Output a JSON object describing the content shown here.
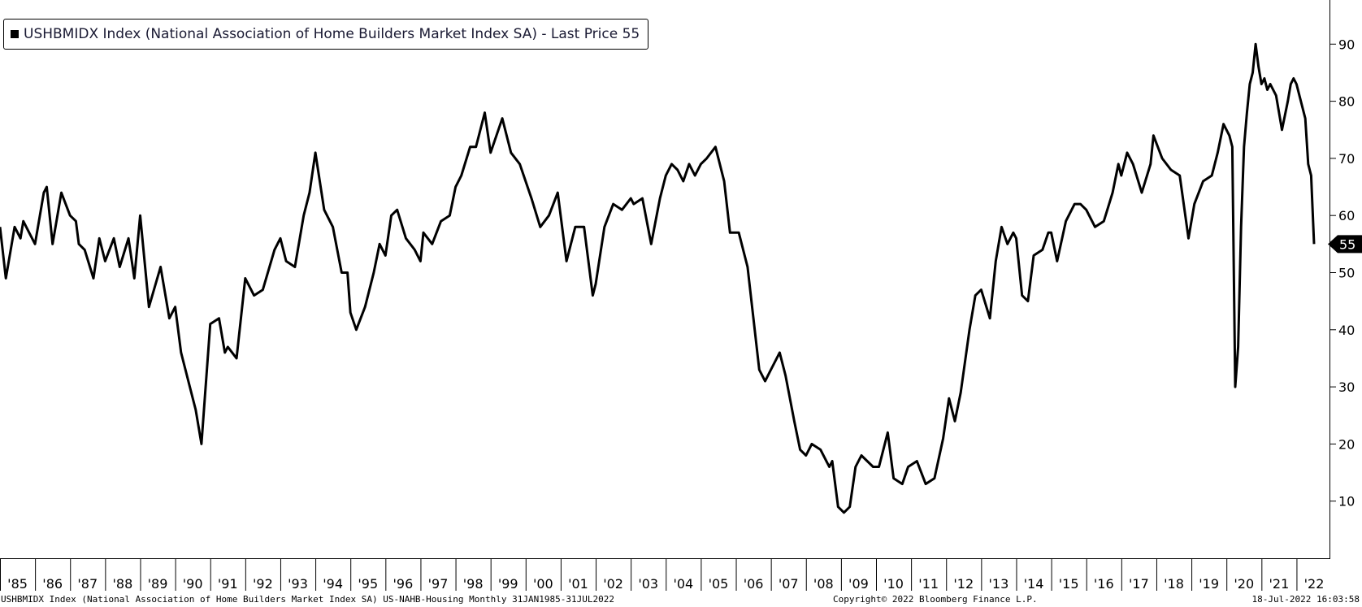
{
  "legend": {
    "text": "USHBMIDX Index (National Association of Home Builders Market Index SA) - Last Price 55",
    "series_color": "#000000"
  },
  "footer": {
    "left": "USHBMIDX Index (National Association of Home Builders Market Index SA) US-NAHB-Housing  Monthly 31JAN1985-31JUL2022",
    "copyright": "Copyright© 2022 Bloomberg Finance L.P.",
    "timestamp": "18-Jul-2022 16:03:58"
  },
  "chart_data": {
    "type": "line",
    "title": "",
    "xlabel": "",
    "ylabel": "",
    "ylim": [
      0,
      100
    ],
    "y_ticks": [
      10,
      20,
      30,
      40,
      50,
      60,
      70,
      80,
      90
    ],
    "x_tick_labels": [
      "'85",
      "'86",
      "'87",
      "'88",
      "'89",
      "'90",
      "'91",
      "'92",
      "'93",
      "'94",
      "'95",
      "'96",
      "'97",
      "'98",
      "'99",
      "'00",
      "'01",
      "'02",
      "'03",
      "'04",
      "'05",
      "'06",
      "'07",
      "'08",
      "'09",
      "'10",
      "'11",
      "'12",
      "'13",
      "'14",
      "'15",
      "'16",
      "'17",
      "'18",
      "'19",
      "'20",
      "'21",
      "'22"
    ],
    "x_range": [
      "1985-01",
      "2022-07"
    ],
    "last_value_label": "55",
    "grid": false,
    "legend_position": "top-left",
    "series": [
      {
        "name": "USHBMIDX Index (National Association of Home Builders Market Index SA)",
        "color": "#000000",
        "points": [
          [
            "1985-01",
            58
          ],
          [
            "1985-03",
            49
          ],
          [
            "1985-06",
            58
          ],
          [
            "1985-08",
            56
          ],
          [
            "1985-09",
            59
          ],
          [
            "1985-11",
            57
          ],
          [
            "1986-01",
            55
          ],
          [
            "1986-04",
            64
          ],
          [
            "1986-05",
            65
          ],
          [
            "1986-07",
            55
          ],
          [
            "1986-10",
            64
          ],
          [
            "1987-01",
            60
          ],
          [
            "1987-03",
            59
          ],
          [
            "1987-04",
            55
          ],
          [
            "1987-06",
            54
          ],
          [
            "1987-09",
            49
          ],
          [
            "1987-11",
            56
          ],
          [
            "1988-01",
            52
          ],
          [
            "1988-04",
            56
          ],
          [
            "1988-06",
            51
          ],
          [
            "1988-09",
            56
          ],
          [
            "1988-11",
            49
          ],
          [
            "1989-01",
            60
          ],
          [
            "1989-04",
            44
          ],
          [
            "1989-08",
            51
          ],
          [
            "1989-11",
            42
          ],
          [
            "1990-01",
            44
          ],
          [
            "1990-03",
            36
          ],
          [
            "1990-06",
            30
          ],
          [
            "1990-08",
            26
          ],
          [
            "1990-10",
            20
          ],
          [
            "1991-01",
            41
          ],
          [
            "1991-04",
            42
          ],
          [
            "1991-06",
            36
          ],
          [
            "1991-07",
            37
          ],
          [
            "1991-10",
            35
          ],
          [
            "1992-01",
            49
          ],
          [
            "1992-04",
            46
          ],
          [
            "1992-07",
            47
          ],
          [
            "1992-11",
            54
          ],
          [
            "1993-01",
            56
          ],
          [
            "1993-03",
            52
          ],
          [
            "1993-06",
            51
          ],
          [
            "1993-09",
            60
          ],
          [
            "1993-11",
            64
          ],
          [
            "1994-01",
            71
          ],
          [
            "1994-04",
            61
          ],
          [
            "1994-07",
            58
          ],
          [
            "1994-10",
            50
          ],
          [
            "1994-12",
            50
          ],
          [
            "1995-01",
            43
          ],
          [
            "1995-03",
            40
          ],
          [
            "1995-06",
            44
          ],
          [
            "1995-09",
            50
          ],
          [
            "1995-11",
            55
          ],
          [
            "1996-01",
            53
          ],
          [
            "1996-03",
            60
          ],
          [
            "1996-05",
            61
          ],
          [
            "1996-08",
            56
          ],
          [
            "1996-11",
            54
          ],
          [
            "1997-01",
            52
          ],
          [
            "1997-02",
            57
          ],
          [
            "1997-05",
            55
          ],
          [
            "1997-08",
            59
          ],
          [
            "1997-11",
            60
          ],
          [
            "1998-01",
            65
          ],
          [
            "1998-03",
            67
          ],
          [
            "1998-06",
            72
          ],
          [
            "1998-08",
            72
          ],
          [
            "1998-11",
            78
          ],
          [
            "1999-01",
            71
          ],
          [
            "1999-05",
            77
          ],
          [
            "1999-08",
            71
          ],
          [
            "1999-11",
            69
          ],
          [
            "2000-01",
            66
          ],
          [
            "2000-03",
            63
          ],
          [
            "2000-06",
            58
          ],
          [
            "2000-09",
            60
          ],
          [
            "2000-12",
            64
          ],
          [
            "2001-03",
            52
          ],
          [
            "2001-06",
            58
          ],
          [
            "2001-09",
            58
          ],
          [
            "2001-12",
            46
          ],
          [
            "2002-01",
            48
          ],
          [
            "2002-04",
            58
          ],
          [
            "2002-07",
            62
          ],
          [
            "2002-10",
            61
          ],
          [
            "2003-01",
            63
          ],
          [
            "2003-02",
            62
          ],
          [
            "2003-05",
            63
          ],
          [
            "2003-08",
            55
          ],
          [
            "2003-11",
            63
          ],
          [
            "2004-01",
            67
          ],
          [
            "2004-03",
            69
          ],
          [
            "2004-05",
            68
          ],
          [
            "2004-07",
            66
          ],
          [
            "2004-09",
            69
          ],
          [
            "2004-11",
            67
          ],
          [
            "2005-01",
            69
          ],
          [
            "2005-03",
            70
          ],
          [
            "2005-06",
            72
          ],
          [
            "2005-09",
            66
          ],
          [
            "2005-11",
            57
          ],
          [
            "2006-02",
            57
          ],
          [
            "2006-05",
            51
          ],
          [
            "2006-07",
            42
          ],
          [
            "2006-09",
            33
          ],
          [
            "2006-11",
            31
          ],
          [
            "2007-01",
            33
          ],
          [
            "2007-04",
            36
          ],
          [
            "2007-06",
            32
          ],
          [
            "2007-09",
            24
          ],
          [
            "2007-11",
            19
          ],
          [
            "2008-01",
            18
          ],
          [
            "2008-03",
            20
          ],
          [
            "2008-06",
            19
          ],
          [
            "2008-09",
            16
          ],
          [
            "2008-10",
            17
          ],
          [
            "2008-12",
            9
          ],
          [
            "2009-02",
            8
          ],
          [
            "2009-04",
            9
          ],
          [
            "2009-06",
            16
          ],
          [
            "2009-08",
            18
          ],
          [
            "2009-10",
            17
          ],
          [
            "2009-12",
            16
          ],
          [
            "2010-02",
            16
          ],
          [
            "2010-05",
            22
          ],
          [
            "2010-07",
            14
          ],
          [
            "2010-10",
            13
          ],
          [
            "2010-12",
            16
          ],
          [
            "2011-03",
            17
          ],
          [
            "2011-06",
            13
          ],
          [
            "2011-09",
            14
          ],
          [
            "2011-12",
            21
          ],
          [
            "2012-02",
            28
          ],
          [
            "2012-04",
            24
          ],
          [
            "2012-06",
            29
          ],
          [
            "2012-09",
            40
          ],
          [
            "2012-11",
            46
          ],
          [
            "2013-01",
            47
          ],
          [
            "2013-04",
            42
          ],
          [
            "2013-06",
            52
          ],
          [
            "2013-08",
            58
          ],
          [
            "2013-10",
            55
          ],
          [
            "2013-12",
            57
          ],
          [
            "2014-01",
            56
          ],
          [
            "2014-03",
            46
          ],
          [
            "2014-05",
            45
          ],
          [
            "2014-07",
            53
          ],
          [
            "2014-10",
            54
          ],
          [
            "2014-12",
            57
          ],
          [
            "2015-01",
            57
          ],
          [
            "2015-03",
            52
          ],
          [
            "2015-06",
            59
          ],
          [
            "2015-09",
            62
          ],
          [
            "2015-11",
            62
          ],
          [
            "2016-01",
            61
          ],
          [
            "2016-04",
            58
          ],
          [
            "2016-07",
            59
          ],
          [
            "2016-10",
            64
          ],
          [
            "2016-12",
            69
          ],
          [
            "2017-01",
            67
          ],
          [
            "2017-03",
            71
          ],
          [
            "2017-05",
            69
          ],
          [
            "2017-08",
            64
          ],
          [
            "2017-11",
            69
          ],
          [
            "2017-12",
            74
          ],
          [
            "2018-03",
            70
          ],
          [
            "2018-06",
            68
          ],
          [
            "2018-09",
            67
          ],
          [
            "2018-12",
            56
          ],
          [
            "2019-02",
            62
          ],
          [
            "2019-05",
            66
          ],
          [
            "2019-08",
            67
          ],
          [
            "2019-10",
            71
          ],
          [
            "2019-12",
            76
          ],
          [
            "2020-02",
            74
          ],
          [
            "2020-03",
            72
          ],
          [
            "2020-04",
            30
          ],
          [
            "2020-05",
            37
          ],
          [
            "2020-06",
            58
          ],
          [
            "2020-07",
            72
          ],
          [
            "2020-08",
            78
          ],
          [
            "2020-09",
            83
          ],
          [
            "2020-10",
            85
          ],
          [
            "2020-11",
            90
          ],
          [
            "2020-12",
            86
          ],
          [
            "2021-01",
            83
          ],
          [
            "2021-02",
            84
          ],
          [
            "2021-03",
            82
          ],
          [
            "2021-04",
            83
          ],
          [
            "2021-06",
            81
          ],
          [
            "2021-08",
            75
          ],
          [
            "2021-10",
            80
          ],
          [
            "2021-11",
            83
          ],
          [
            "2021-12",
            84
          ],
          [
            "2022-01",
            83
          ],
          [
            "2022-02",
            81
          ],
          [
            "2022-04",
            77
          ],
          [
            "2022-05",
            69
          ],
          [
            "2022-06",
            67
          ],
          [
            "2022-07",
            55
          ]
        ]
      }
    ]
  }
}
